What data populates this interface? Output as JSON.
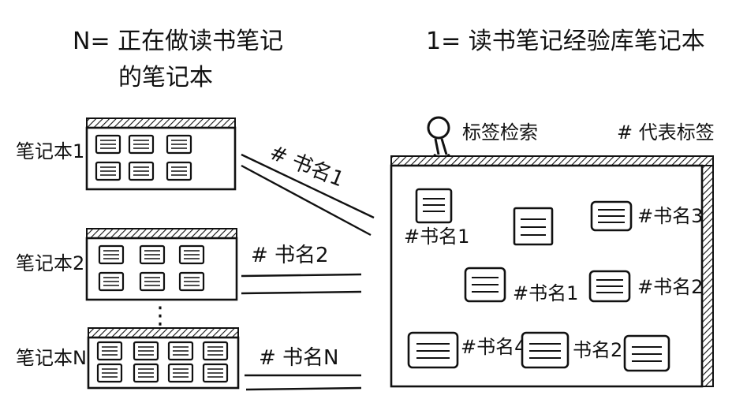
{
  "left_title": {
    "line1": "N= 正在做读书笔记",
    "line2": "的笔记本"
  },
  "right_title": "1= 读书笔记经验库笔记本",
  "search_label": "标签检索",
  "tag_legend": "# 代表标签",
  "notebooks": [
    {
      "label": "笔记本1",
      "tag": "# 书名1"
    },
    {
      "label": "笔记本2",
      "tag": "# 书名2"
    },
    {
      "label": "笔记本N",
      "tag": "# 书名N"
    }
  ],
  "ellipsis": "⋮",
  "library_notes": [
    {
      "tag": "#书名1"
    },
    {
      "tag": ""
    },
    {
      "tag": "#书名3"
    },
    {
      "tag": "#书名1"
    },
    {
      "tag": "#书名2"
    },
    {
      "tag": "#书名4"
    },
    {
      "tag": "书名2"
    },
    {
      "tag": ""
    }
  ],
  "icons": {
    "search": "magnifier-icon",
    "note": "note-card-icon"
  }
}
